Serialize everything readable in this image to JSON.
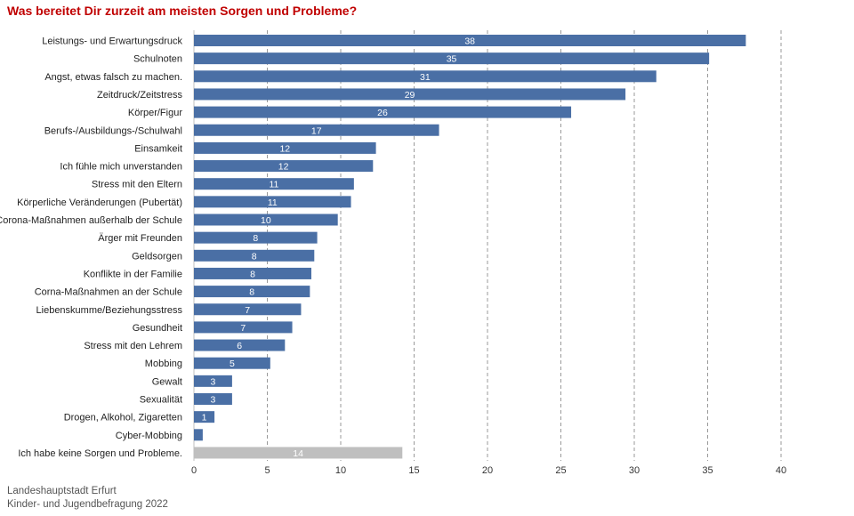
{
  "title": "Was bereitet Dir zurzeit am meisten Sorgen und Probleme?",
  "source": [
    "Landeshauptstadt Erfurt",
    "Kinder- und Jugendbefragung 2022"
  ],
  "colors": {
    "bar": "#4a6fa5",
    "bar_other": "#bfbfbf",
    "title": "#c00000",
    "label": "#ffffff"
  },
  "chart_data": {
    "type": "bar",
    "orientation": "horizontal",
    "title": "Was bereitet Dir zurzeit am meisten Sorgen und Probleme?",
    "xlabel": "",
    "ylabel": "",
    "xlim": [
      0,
      40
    ],
    "xticks": [
      0,
      5,
      10,
      15,
      20,
      25,
      30,
      35,
      40
    ],
    "grid": "vertical dashed",
    "categories": [
      "Leistungs- und Erwartungsdruck",
      "Schulnoten",
      "Angst, etwas falsch zu machen.",
      "Zeitdruck/Zeitstress",
      "Körper/Figur",
      "Berufs-/Ausbildungs-/Schulwahl",
      "Einsamkeit",
      "Ich fühle mich unverstanden",
      "Stress mit den Eltern",
      "Körperliche Veränderungen (Pubertät)",
      "Corona-Maßnahmen außerhalb der Schule",
      "Ärger mit Freunden",
      "Geldsorgen",
      "Konflikte in der Familie",
      "Corna-Maßnahmen an der Schule",
      "Liebenskumme/Beziehungsstress",
      "Gesundheit",
      "Stress mit den Lehrem",
      "Mobbing",
      "Gewalt",
      "Sexualität",
      "Drogen, Alkohol, Zigaretten",
      "Cyber-Mobbing",
      "Ich habe keine Sorgen und Probleme."
    ],
    "values": [
      37.6,
      35.1,
      31.5,
      29.4,
      25.7,
      16.7,
      12.4,
      12.2,
      10.9,
      10.7,
      9.8,
      8.4,
      8.2,
      8.0,
      7.9,
      7.3,
      6.7,
      6.2,
      5.2,
      2.6,
      2.6,
      1.4,
      0.6,
      14.2
    ],
    "data_labels": [
      "38",
      "35",
      "31",
      "29",
      "26",
      "17",
      "12",
      "12",
      "11",
      "11",
      "10",
      "8",
      "8",
      "8",
      "8",
      "7",
      "7",
      "6",
      "5",
      "3",
      "3",
      "1",
      "",
      "14"
    ],
    "highlight_last": true
  }
}
